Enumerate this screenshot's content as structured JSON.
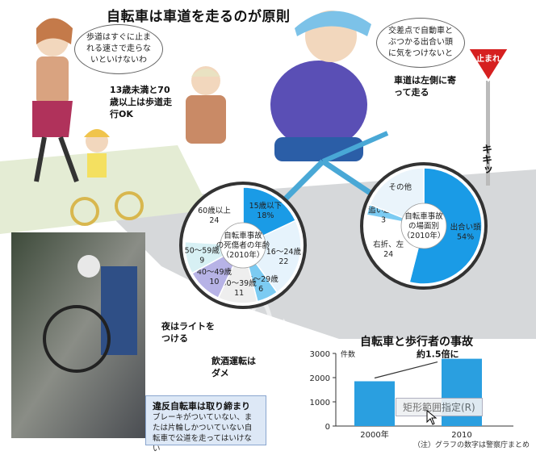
{
  "header": {
    "title": "自転車は車道を走るのが原則"
  },
  "bubbles": {
    "woman": "歩道はすぐに止まれる速さで走らないといけないわ",
    "cyclist": "交差点で自動車とぶつかる出合い頭に気をつけないと"
  },
  "callouts": {
    "age_rule": "13歳未満と70歳以上は歩道走行OK",
    "keep_left": "車道は左側に寄って走る",
    "lights": "夜はライトをつける",
    "drunk": "飲酒運転はダメ",
    "skid": "キキッ",
    "stop_sign": "止まれ"
  },
  "info_box": {
    "head": "違反自転車は取り締まり",
    "body": "ブレーキがついていない、または片輪しかついていない自転車で公道を走ってはいけない"
  },
  "chart_data": [
    {
      "type": "pie",
      "title": "自転車事故の死傷者の年齢（2010年）",
      "slices": [
        {
          "label": "15歳以下",
          "value": 18,
          "value_text": "18%",
          "color": "#1a9be6"
        },
        {
          "label": "16～24歳",
          "value": 22,
          "value_text": "22",
          "color": "#e6f3fc"
        },
        {
          "label": "25～29歳",
          "value": 6,
          "value_text": "6",
          "color": "#7ccbf2"
        },
        {
          "label": "30～39歳",
          "value": 11,
          "value_text": "11",
          "color": "#eeeeee"
        },
        {
          "label": "40～49歳",
          "value": 10,
          "value_text": "10",
          "color": "#b7b3e6"
        },
        {
          "label": "50～59歳",
          "value": 9,
          "value_text": "9",
          "color": "#d7f0f4"
        },
        {
          "label": "60歳以上",
          "value": 24,
          "value_text": "24",
          "color": "#ffffff"
        }
      ]
    },
    {
      "type": "pie",
      "title": "自転車事故の場面別（2010年）",
      "slices": [
        {
          "label": "出合い頭",
          "value": 54,
          "value_text": "54%",
          "color": "#1a9be6"
        },
        {
          "label": "右折、左折のとき",
          "value": 24,
          "value_text": "24",
          "color": "#ffffff"
        },
        {
          "label": "追い越しや追い抜きのとき",
          "value": 3,
          "value_text": "3",
          "color": "#7ccbf2"
        },
        {
          "label": "その他",
          "value": 19,
          "value_text": "",
          "color": "#eaf4fb"
        }
      ]
    },
    {
      "type": "bar",
      "title": "自転車と歩行者の事故",
      "ylabel": "件数",
      "categories": [
        "2000年",
        "2010"
      ],
      "values": [
        1850,
        2780
      ],
      "ylim": [
        0,
        3000
      ],
      "yticks": [
        0,
        1000,
        2000,
        3000
      ],
      "annotation": "約1.5倍に",
      "color": "#2a9fe0",
      "note": "（注）グラフの数字は警察庁まとめ"
    }
  ],
  "context_menu": {
    "label": "矩形範囲指定(R)"
  }
}
